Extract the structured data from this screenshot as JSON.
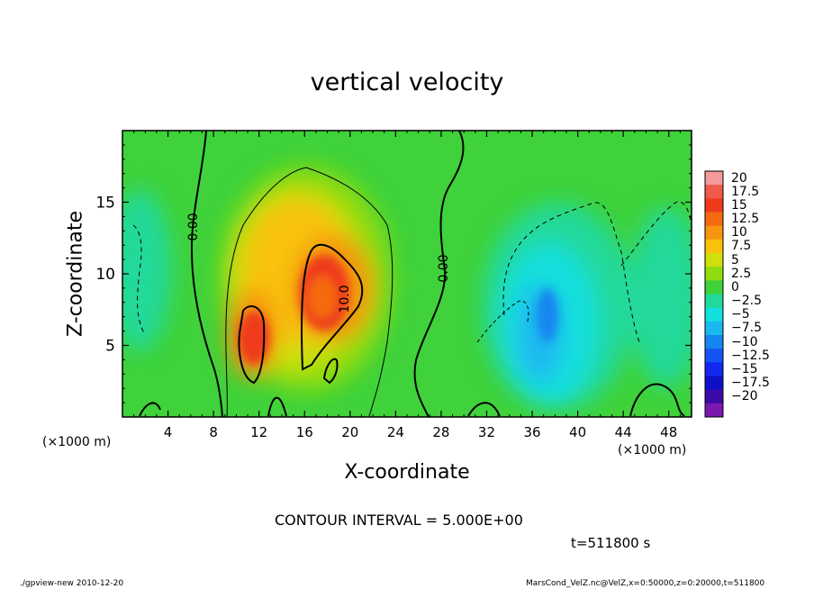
{
  "chart_data": {
    "type": "heatmap",
    "title": "vertical velocity",
    "xlabel": "X-coordinate",
    "ylabel": "Z-coordinate",
    "x_unit_label": "(×1000 m)",
    "xlim": [
      0,
      50
    ],
    "ylim": [
      0,
      20
    ],
    "xticks": [
      4,
      8,
      12,
      16,
      20,
      24,
      28,
      32,
      36,
      40,
      44,
      48
    ],
    "yticks": [
      5,
      10,
      15
    ],
    "colorbar": {
      "labels": [
        "20",
        "17.5",
        "15",
        "12.5",
        "10",
        "7.5",
        "5",
        "2.5",
        "0",
        "−2.5",
        "−5",
        "−7.5",
        "−10",
        "−12.5",
        "−15",
        "−17.5",
        "−20"
      ],
      "colors": [
        "#f59a9a",
        "#ef5a4a",
        "#ef3a1c",
        "#f56a10",
        "#f5960e",
        "#f8c20c",
        "#cfe00c",
        "#8fdc10",
        "#3fd23a",
        "#21d99a",
        "#13dfdd",
        "#1ab8f0",
        "#1486f0",
        "#1454f5",
        "#1228ef",
        "#0e10c8",
        "#3c0aa8",
        "#7a18b0"
      ]
    },
    "contour_labels": [
      "0.00",
      "10.0",
      "0.00"
    ],
    "contour_interval_text": "CONTOUR INTERVAL = 5.000E+00",
    "time_text": "t=511800 s",
    "features": [
      {
        "kind": "updraft",
        "x": 11.5,
        "z": 6.5,
        "w": 14
      },
      {
        "kind": "updraft",
        "x": 17.5,
        "z": 8.5,
        "w": 13
      },
      {
        "kind": "broad-updraft",
        "x": 15,
        "z": 10,
        "w": 4
      },
      {
        "kind": "downdraft",
        "x": 37.5,
        "z": 7,
        "w": -9
      },
      {
        "kind": "weak-downdraft",
        "x": 1.5,
        "z": 9,
        "w": -4
      },
      {
        "kind": "weak-downdraft",
        "x": 45.5,
        "z": 8,
        "w": -4
      }
    ]
  },
  "footer": {
    "left": "./gpview-new   2010-12-20",
    "right": "MarsCond_VelZ.nc@VelZ,x=0:50000,z=0:20000,t=511800"
  }
}
